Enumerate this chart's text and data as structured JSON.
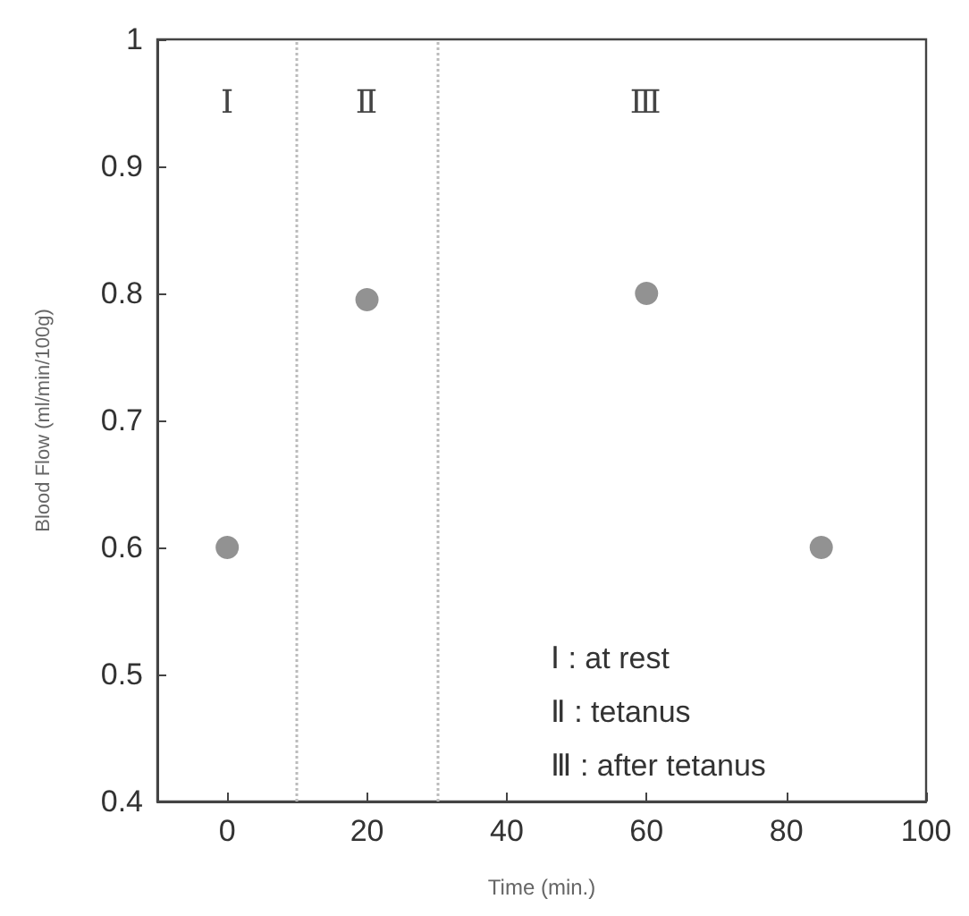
{
  "chart_data": {
    "type": "scatter",
    "xlabel": "Time (min.)",
    "ylabel": "Blood Flow (ml/min/100g)",
    "x": [
      0,
      20,
      60,
      85
    ],
    "values": [
      0.6,
      0.795,
      0.8,
      0.6
    ],
    "color": "#777777",
    "marker": "circle",
    "xlim": [
      -10,
      100
    ],
    "xticks": [
      0,
      20,
      40,
      60,
      80,
      100
    ],
    "ylim": [
      0.4,
      1
    ],
    "yticks": [
      0.4,
      0.5,
      0.6,
      0.7,
      0.8,
      0.9,
      1
    ],
    "grid": false,
    "ref_lines": [
      {
        "axis": "x",
        "value": 10,
        "color": "#bbbbbb",
        "line_style": "dotted"
      },
      {
        "axis": "x",
        "value": 30,
        "color": "#bbbbbb",
        "line_style": "dotted"
      }
    ],
    "annotations": [
      "Ⅰ",
      "Ⅱ",
      "Ⅲ",
      "Ⅰ : at rest",
      "Ⅱ : tetanus",
      "Ⅲ : after tetanus"
    ]
  }
}
